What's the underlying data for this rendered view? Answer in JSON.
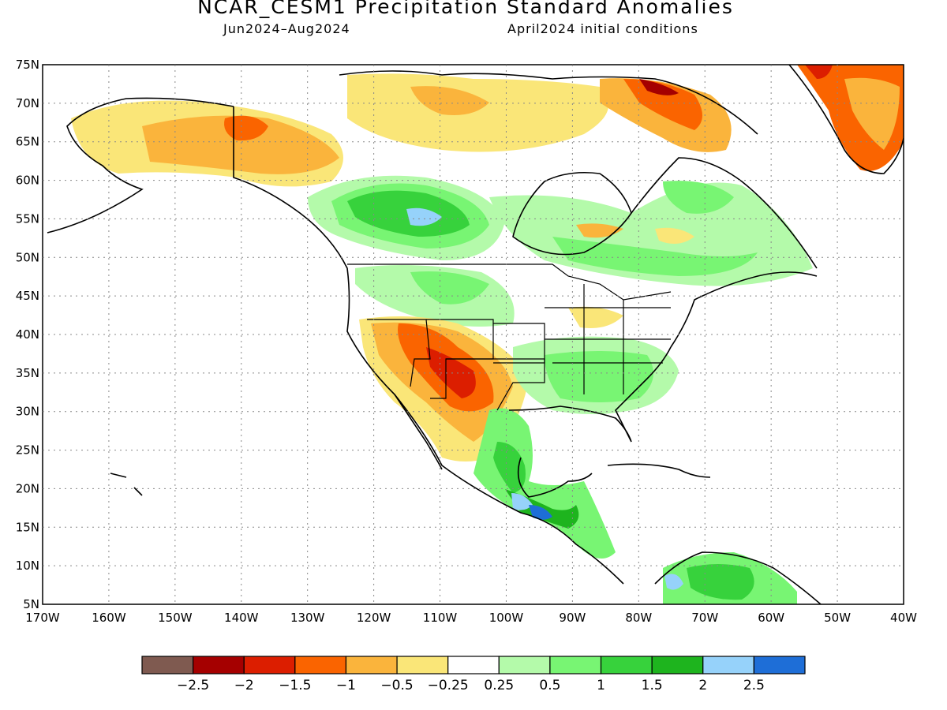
{
  "title": "NCAR_CESM1 Precipitation Standard Anomalies",
  "subtitle_left": "Jun2024–Aug2024",
  "subtitle_right": "April2024 initial conditions",
  "map": {
    "lon_range": [
      -170,
      -40
    ],
    "lat_range": [
      5,
      75
    ],
    "lat_ticks": [
      "5N",
      "10N",
      "15N",
      "20N",
      "25N",
      "30N",
      "35N",
      "40N",
      "45N",
      "50N",
      "55N",
      "60N",
      "65N",
      "70N",
      "75N"
    ],
    "lon_ticks": [
      "170W",
      "160W",
      "150W",
      "140W",
      "130W",
      "120W",
      "110W",
      "100W",
      "90W",
      "80W",
      "70W",
      "60W",
      "50W",
      "40W"
    ],
    "gridlines": "dotted"
  },
  "legend": {
    "colors": [
      "#7f5a50",
      "#a50000",
      "#dc1e00",
      "#fa6400",
      "#fab43c",
      "#fae678",
      "#ffffff",
      "#b4faaa",
      "#78f573",
      "#37d23c",
      "#1eb41e",
      "#96d2fa",
      "#1e6ed7"
    ],
    "labels": [
      "−2.5",
      "−2",
      "−1.5",
      "−1",
      "−0.5",
      "−0.25",
      "0.25",
      "0.5",
      "1",
      "1.5",
      "2",
      "2.5"
    ]
  },
  "anomaly_regions": [
    {
      "region": "Southwest US / Northern Mexico",
      "category": "-1.5"
    },
    {
      "region": "Great Basin / Colorado Plateau",
      "category": "-1"
    },
    {
      "region": "Alaska Interior",
      "category": "-0.5"
    },
    {
      "region": "Yukon",
      "category": "-1"
    },
    {
      "region": "Greenland",
      "category": "-1"
    },
    {
      "region": "Baffin Island",
      "category": "-1.5"
    },
    {
      "region": "Canadian Prairies",
      "category": "1"
    },
    {
      "region": "Southeast US",
      "category": "0.5"
    },
    {
      "region": "Southern Mexico",
      "category": "2"
    },
    {
      "region": "Northern South America",
      "category": "1.5"
    }
  ]
}
